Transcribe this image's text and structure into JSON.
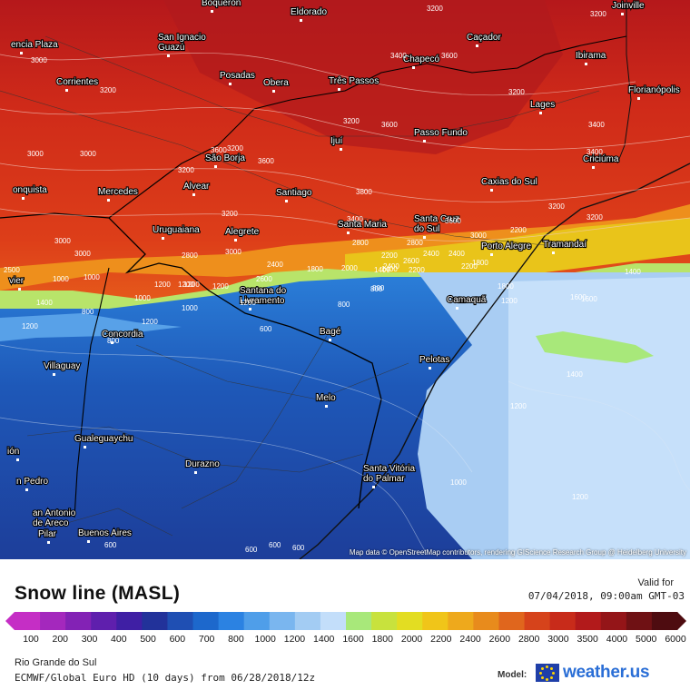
{
  "map": {
    "attribution": "Map data © OpenStreetMap contributors, rendering GIScience Research Group @ Heidelberg University",
    "cities": [
      "Boqueron",
      "Eldorado",
      "Joinville",
      "San Ignacio Guazú",
      "Caçador",
      "encia Plaza",
      "Chapecó",
      "Ibirama",
      "Posadas",
      "Obera",
      "Três Passos",
      "Corrientes",
      "Florianópolis",
      "Lages",
      "Passo Fundo",
      "Ijuí",
      "São Borja",
      "Criciúma",
      "Alvear",
      "Caxias do Sul",
      "Santiago",
      "onquista",
      "Mercedes",
      "Santa Maria",
      "Santa Cruz do Sul",
      "Uruguaiana",
      "Alegrete",
      "Porto Alegre",
      "Tramandaí",
      "Santana do Livramento",
      "Camaquã",
      "vier",
      "Concordia",
      "Bagé",
      "Villaguay",
      "Pelotas",
      "Melo",
      "Gualeguaychu",
      "ión",
      "Durazno",
      "Santa Vitória do Palmar",
      "n Pedro",
      "an Antonio de Areco",
      "Pilar",
      "Buenos Aires"
    ],
    "contour_labels": [
      "3200",
      "3200",
      "3000",
      "3200",
      "3200",
      "3200",
      "3200",
      "3600",
      "3600",
      "3000",
      "3200",
      "3600",
      "3800",
      "3400",
      "3400",
      "3600",
      "3400",
      "3000",
      "3200",
      "3000",
      "3600",
      "3400",
      "3200",
      "3200",
      "2800",
      "3000",
      "3000",
      "2800",
      "3000",
      "2500",
      "2400",
      "2600",
      "2800",
      "2400",
      "2400",
      "2200",
      "2400",
      "2600",
      "2200",
      "2200",
      "2000",
      "2200",
      "1800",
      "1400",
      "1800",
      "1000",
      "1200",
      "1000",
      "800",
      "1200",
      "1400",
      "1600",
      "1800",
      "1200",
      "800",
      "1200",
      "1400",
      "1200",
      "600",
      "800",
      "1600",
      "1400",
      "1200",
      "1200",
      "1000",
      "800",
      "1400",
      "1200",
      "1000",
      "1200",
      "1000",
      "1200",
      "600",
      "600",
      "600",
      "600",
      "800"
    ]
  },
  "legend": {
    "title": "Snow line (MASL)",
    "valid_label": "Valid for",
    "valid_time": "07/04/2018, 09:00am GMT-03",
    "ticks": [
      "100",
      "200",
      "300",
      "400",
      "500",
      "600",
      "700",
      "800",
      "1000",
      "1200",
      "1400",
      "1600",
      "1800",
      "2000",
      "2200",
      "2400",
      "2600",
      "2800",
      "3000",
      "3500",
      "4000",
      "5000",
      "6000"
    ],
    "colors": [
      "#c52ec5",
      "#a428bd",
      "#8322b5",
      "#5f1fad",
      "#3f1fa4",
      "#22329a",
      "#1f4fb3",
      "#1d68cc",
      "#2b82e2",
      "#4f9ee9",
      "#7ab6ef",
      "#a3ccf3",
      "#c3defa",
      "#a8e87a",
      "#c8e23d",
      "#e3dd22",
      "#f0c519",
      "#eea91c",
      "#e88b1c",
      "#e0661d",
      "#d6431b",
      "#c82b1a",
      "#b21a1b",
      "#941518",
      "#6f1114",
      "#4e0c10"
    ],
    "region": "Rio Grande do Sul",
    "model": "ECMWF/Global Euro HD (10 days) from 06/28/2018/12z",
    "model_label": "Model:",
    "brand": "weather.us"
  }
}
